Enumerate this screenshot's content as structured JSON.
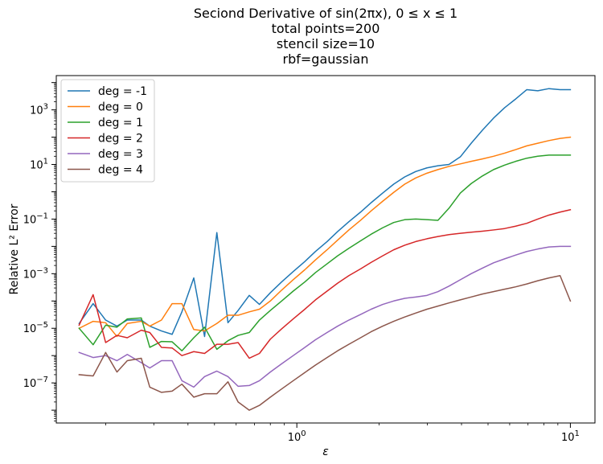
{
  "chart_data": {
    "type": "line",
    "title_lines": [
      "Seciond Derivative of sin(2πx), 0 ≤ x ≤ 1",
      "total points=200",
      "stencil size=10",
      "rbf=gaussian"
    ],
    "xlabel": "ε",
    "ylabel": "Relative L² Error",
    "x_scale": "log",
    "y_scale": "log",
    "xlim": [
      0.132,
      12.3
    ],
    "ylim": [
      3.4e-09,
      18000.0
    ],
    "x_ticks": [
      {
        "value": 1,
        "base": "10",
        "exp": "0"
      },
      {
        "value": 10,
        "base": "10",
        "exp": "1"
      }
    ],
    "y_ticks": [
      {
        "value": 1e-07,
        "base": "10",
        "exp": "−7"
      },
      {
        "value": 1e-05,
        "base": "10",
        "exp": "−5"
      },
      {
        "value": 0.001,
        "base": "10",
        "exp": "−3"
      },
      {
        "value": 0.1,
        "base": "10",
        "exp": "−1"
      },
      {
        "value": 10,
        "base": "10",
        "exp": "1"
      },
      {
        "value": 1000,
        "base": "10",
        "exp": "3"
      }
    ],
    "grid": false,
    "legend_position": "upper-left",
    "x": [
      0.16,
      0.18,
      0.2,
      0.22,
      0.24,
      0.27,
      0.29,
      0.32,
      0.35,
      0.38,
      0.42,
      0.46,
      0.51,
      0.56,
      0.61,
      0.67,
      0.73,
      0.8,
      0.88,
      0.97,
      1.07,
      1.17,
      1.29,
      1.41,
      1.55,
      1.71,
      1.87,
      2.06,
      2.26,
      2.48,
      2.72,
      2.99,
      3.28,
      3.6,
      3.96,
      4.34,
      4.77,
      5.24,
      5.75,
      6.31,
      6.93,
      7.6,
      8.35,
      9.17,
      10.0
    ],
    "series": [
      {
        "name": "deg = -1",
        "color": "#1f77b4",
        "values": [
          1.5e-05,
          8e-05,
          2e-05,
          1.2e-05,
          2e-05,
          2e-05,
          1.2e-05,
          8e-06,
          6e-06,
          4e-05,
          0.0007,
          5e-06,
          0.032,
          1.6e-05,
          4.5e-05,
          0.00016,
          7.5e-05,
          0.0002,
          0.0005,
          0.0012,
          0.0028,
          0.0065,
          0.015,
          0.035,
          0.08,
          0.18,
          0.4,
          0.9,
          1.9,
          3.5,
          5.5,
          7.5,
          9.0,
          10.0,
          19.0,
          60.0,
          180.0,
          500.0,
          1200.0,
          2500.0,
          5500.0,
          5000.0,
          6000.0,
          5500.0,
          5500.0
        ]
      },
      {
        "name": "deg = 0",
        "color": "#ff7f0e",
        "values": [
          1e-05,
          1.8e-05,
          1.6e-05,
          5e-06,
          1.5e-05,
          1.8e-05,
          1.2e-05,
          2e-05,
          8e-05,
          8e-05,
          9e-06,
          8e-06,
          1.5e-05,
          3e-05,
          3e-05,
          4e-05,
          5e-05,
          0.0001,
          0.00025,
          0.0006,
          0.0014,
          0.0032,
          0.0075,
          0.017,
          0.04,
          0.09,
          0.2,
          0.45,
          0.95,
          1.9,
          3.2,
          4.8,
          6.5,
          8.5,
          10.5,
          13.0,
          16.0,
          20.0,
          26.0,
          35.0,
          48.0,
          60.0,
          75.0,
          90.0,
          100.0
        ]
      },
      {
        "name": "deg = 1",
        "color": "#2ca02c",
        "values": [
          1e-05,
          2.5e-06,
          1.3e-05,
          1.1e-05,
          2.2e-05,
          2.4e-05,
          2e-06,
          3.3e-06,
          3.2e-06,
          1.5e-06,
          4.5e-06,
          1.1e-05,
          1.7e-06,
          3.5e-06,
          5.5e-06,
          7e-06,
          2e-05,
          4.5e-05,
          0.0001,
          0.00023,
          0.0005,
          0.0011,
          0.0023,
          0.0045,
          0.0085,
          0.016,
          0.028,
          0.048,
          0.075,
          0.095,
          0.1,
          0.095,
          0.09,
          0.25,
          0.9,
          2.0,
          3.8,
          6.5,
          9.5,
          13.0,
          17.0,
          20.0,
          22.0,
          22.0,
          22.0
        ]
      },
      {
        "name": "deg = 2",
        "color": "#d62728",
        "values": [
          1.3e-05,
          0.00017,
          3e-06,
          5.5e-06,
          4.5e-06,
          8.5e-06,
          7e-06,
          2e-06,
          1.9e-06,
          1e-06,
          1.4e-06,
          1.2e-06,
          2.6e-06,
          2.6e-06,
          3e-06,
          8e-07,
          1.2e-06,
          4e-06,
          9.5e-06,
          2.2e-05,
          5e-05,
          0.00011,
          0.00023,
          0.00045,
          0.00085,
          0.0015,
          0.0026,
          0.0045,
          0.0075,
          0.011,
          0.015,
          0.019,
          0.023,
          0.027,
          0.03,
          0.033,
          0.036,
          0.04,
          0.045,
          0.055,
          0.07,
          0.1,
          0.14,
          0.18,
          0.22
        ]
      },
      {
        "name": "deg = 3",
        "color": "#9467bd",
        "values": [
          1.3e-06,
          8.5e-07,
          1e-06,
          6.5e-07,
          1.1e-06,
          5.5e-07,
          3.5e-07,
          6.5e-07,
          6.5e-07,
          1.2e-07,
          7e-08,
          1.7e-07,
          2.7e-07,
          1.7e-07,
          7.5e-08,
          8e-08,
          1.2e-07,
          2.5e-07,
          5e-07,
          1e-06,
          2e-06,
          3.8e-06,
          7e-06,
          1.2e-05,
          2e-05,
          3.2e-05,
          5e-05,
          7.5e-05,
          0.0001,
          0.000125,
          0.00014,
          0.00016,
          0.00022,
          0.00035,
          0.0006,
          0.001,
          0.0016,
          0.0025,
          0.0035,
          0.0048,
          0.0065,
          0.008,
          0.0095,
          0.01,
          0.01
        ]
      },
      {
        "name": "deg = 4",
        "color": "#8c564b",
        "values": [
          2e-07,
          1.8e-07,
          1.3e-06,
          2.5e-07,
          6.5e-07,
          8e-07,
          7e-08,
          4.5e-08,
          5e-08,
          9e-08,
          3e-08,
          4e-08,
          4e-08,
          1.1e-07,
          2e-08,
          1e-08,
          1.5e-08,
          3e-08,
          6e-08,
          1.2e-07,
          2.4e-07,
          4.5e-07,
          8.5e-07,
          1.5e-06,
          2.6e-06,
          4.5e-06,
          7.5e-06,
          1.2e-05,
          1.8e-05,
          2.6e-05,
          3.6e-05,
          5e-05,
          6.5e-05,
          8.5e-05,
          0.00011,
          0.00014,
          0.00018,
          0.00022,
          0.00027,
          0.00033,
          0.00042,
          0.00055,
          0.0007,
          0.00085,
          0.0001
        ]
      }
    ]
  }
}
